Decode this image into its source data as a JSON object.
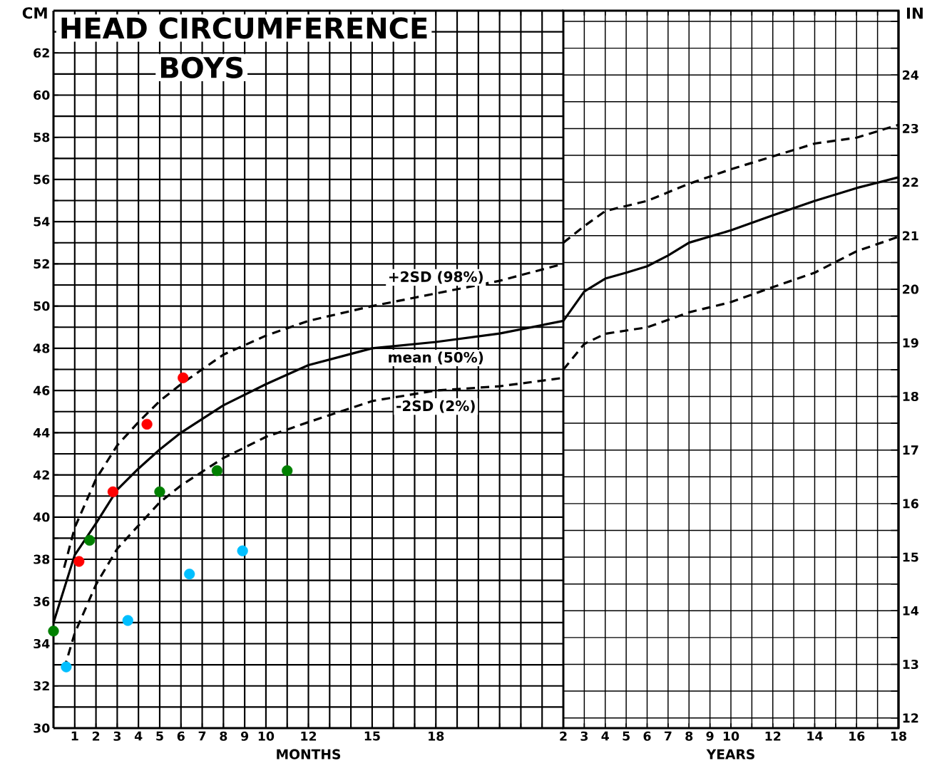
{
  "chart_data": [
    {
      "type": "line",
      "title": "HEAD CIRCUMFERENCE",
      "subtitle": "BOYS",
      "xlabel": "MONTHS",
      "ylabel": "CM",
      "xlim": [
        0,
        24
      ],
      "ylim": [
        30,
        64
      ],
      "grid": true,
      "xticks": [
        {
          "value": 0,
          "label": null
        },
        1,
        2,
        3,
        4,
        5,
        6,
        7,
        8,
        9,
        10,
        {
          "value": 11,
          "label": null
        },
        12,
        {
          "value": 13,
          "label": null
        },
        {
          "value": 14,
          "label": null
        },
        15,
        {
          "value": 16,
          "label": null
        },
        {
          "value": 17,
          "label": null
        },
        18,
        {
          "value": 19,
          "label": null
        },
        {
          "value": 20,
          "label": null
        },
        {
          "value": 21,
          "label": null
        },
        {
          "value": 22,
          "label": null
        },
        {
          "value": 23,
          "label": null
        }
      ],
      "yticks": [
        30,
        {
          "value": 31,
          "label": null
        },
        32,
        {
          "value": 33,
          "label": null
        },
        34,
        {
          "value": 35,
          "label": null
        },
        36,
        {
          "value": 37,
          "label": null
        },
        38,
        {
          "value": 39,
          "label": null
        },
        40,
        {
          "value": 41,
          "label": null
        },
        42,
        {
          "value": 43,
          "label": null
        },
        44,
        {
          "value": 45,
          "label": null
        },
        46,
        {
          "value": 47,
          "label": null
        },
        48,
        {
          "value": 49,
          "label": null
        },
        50,
        {
          "value": 51,
          "label": null
        },
        52,
        {
          "value": 53,
          "label": null
        },
        54,
        {
          "value": 55,
          "label": null
        },
        56,
        {
          "value": 57,
          "label": null
        },
        58,
        {
          "value": 59,
          "label": null
        },
        60,
        {
          "value": 61,
          "label": null
        },
        62,
        {
          "value": 63,
          "label": null
        }
      ],
      "series": [
        {
          "name": "+2SD (98%)",
          "color": "#000000",
          "line_style": "dashed",
          "x": [
            0.5,
            1,
            2,
            3,
            4,
            5,
            6,
            8,
            10,
            12,
            15,
            18,
            21,
            24
          ],
          "values": [
            37.6,
            39.5,
            41.8,
            43.4,
            44.5,
            45.5,
            46.3,
            47.7,
            48.6,
            49.3,
            50.0,
            50.6,
            51.2,
            52.0
          ]
        },
        {
          "name": "mean (50%)",
          "color": "#000000",
          "line_style": "solid",
          "x": [
            0,
            1,
            2,
            3,
            4,
            5,
            6,
            8,
            10,
            12,
            15,
            18,
            21,
            24
          ],
          "values": [
            35.0,
            38.2,
            39.7,
            41.3,
            42.3,
            43.2,
            44.0,
            45.3,
            46.3,
            47.2,
            48.0,
            48.3,
            48.7,
            49.3
          ]
        },
        {
          "name": "-2SD (2%)",
          "color": "#000000",
          "line_style": "dashed",
          "x": [
            0.5,
            1,
            2,
            3,
            4,
            5,
            6,
            8,
            10,
            12,
            15,
            18,
            21,
            24
          ],
          "values": [
            32.8,
            34.5,
            36.8,
            38.5,
            39.6,
            40.7,
            41.5,
            42.8,
            43.8,
            44.5,
            45.5,
            46.0,
            46.2,
            46.6
          ]
        },
        {
          "type": "scatter",
          "marker": "circle",
          "color": "#ff0000",
          "x": [
            1.2,
            2.8,
            4.4,
            6.1
          ],
          "values": [
            37.9,
            41.2,
            44.4,
            46.6
          ]
        },
        {
          "type": "scatter",
          "marker": "circle",
          "color": "#008000",
          "x": [
            0,
            1.7,
            5.0,
            7.7,
            11.0
          ],
          "values": [
            34.6,
            38.9,
            41.2,
            42.2,
            42.2
          ]
        },
        {
          "type": "scatter",
          "marker": "circle",
          "color": "#00bfff",
          "x": [
            0.6,
            3.5,
            6.4,
            8.9
          ],
          "values": [
            32.9,
            35.1,
            37.3,
            38.4
          ]
        }
      ]
    },
    {
      "type": "line",
      "xlabel": "YEARS",
      "y2label": "IN",
      "xlim": [
        2,
        18
      ],
      "y2lim": [
        11.81,
        25.2
      ],
      "grid": true,
      "xticks": [
        2,
        3,
        4,
        5,
        6,
        7,
        8,
        9,
        10,
        {
          "value": 11,
          "label": null
        },
        12,
        {
          "value": 13,
          "label": null
        },
        14,
        {
          "value": 15,
          "label": null
        },
        16,
        {
          "value": 17,
          "label": null
        },
        18
      ],
      "y2ticks": [
        12,
        {
          "value": 12.5,
          "label": null
        },
        13,
        {
          "value": 13.5,
          "label": null
        },
        14,
        {
          "value": 14.5,
          "label": null
        },
        15,
        {
          "value": 15.5,
          "label": null
        },
        16,
        {
          "value": 16.5,
          "label": null
        },
        17,
        {
          "value": 17.5,
          "label": null
        },
        18,
        {
          "value": 18.5,
          "label": null
        },
        19,
        {
          "value": 19.5,
          "label": null
        },
        20,
        {
          "value": 20.5,
          "label": null
        },
        21,
        {
          "value": 21.5,
          "label": null
        },
        22,
        {
          "value": 22.5,
          "label": null
        },
        23,
        {
          "value": 23.5,
          "label": null
        },
        24,
        {
          "value": 24.5,
          "label": null
        },
        {
          "value": 25,
          "label": null
        }
      ],
      "series": [
        {
          "axis": "y2",
          "color": "#000000",
          "line_style": "dashed",
          "x": [
            2,
            3,
            4,
            6,
            8,
            10,
            12,
            14,
            16,
            18
          ],
          "values": [
            20.87,
            21.18,
            21.46,
            21.65,
            21.97,
            22.24,
            22.48,
            22.72,
            22.83,
            23.07
          ]
        },
        {
          "axis": "y2",
          "color": "#000000",
          "line_style": "solid",
          "x": [
            2,
            3,
            4,
            5,
            6,
            7,
            8,
            10,
            12,
            14,
            16,
            18
          ],
          "values": [
            19.41,
            19.96,
            20.2,
            20.31,
            20.43,
            20.63,
            20.87,
            21.1,
            21.38,
            21.65,
            21.89,
            22.09
          ]
        },
        {
          "axis": "y2",
          "color": "#000000",
          "line_style": "dashed",
          "x": [
            2,
            3,
            4,
            6,
            8,
            10,
            12,
            14,
            16,
            18
          ],
          "values": [
            18.5,
            18.98,
            19.17,
            19.29,
            19.57,
            19.76,
            20.04,
            20.31,
            20.71,
            20.98
          ]
        }
      ]
    }
  ]
}
